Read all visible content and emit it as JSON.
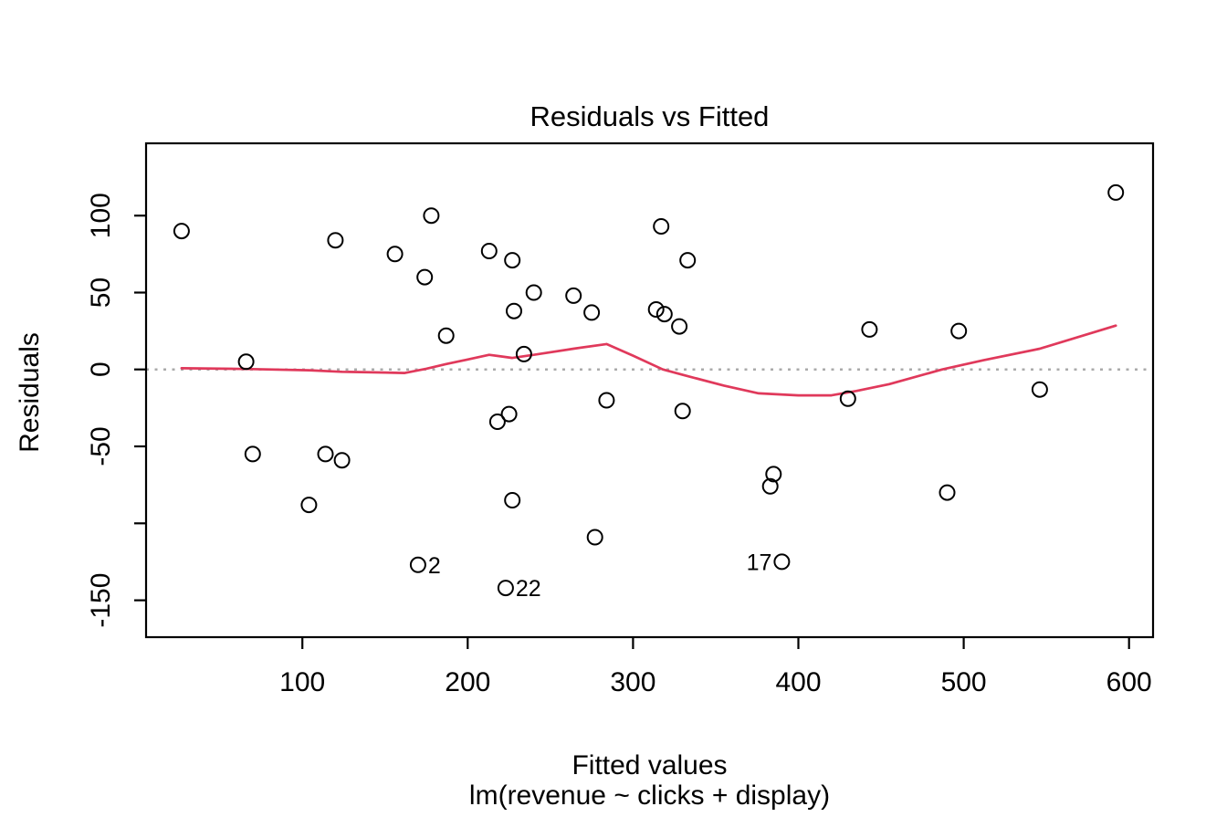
{
  "chart_data": {
    "type": "scatter",
    "title": "Residuals vs Fitted",
    "xlabel": "Fitted values",
    "sublabel": "lm(revenue ~ clicks + display)",
    "ylabel": "Residuals",
    "xlim": [
      5.5,
      614.5
    ],
    "ylim": [
      -174,
      147
    ],
    "grid": false,
    "legend": null,
    "x_ticks": [
      {
        "value": 100,
        "label": "100"
      },
      {
        "value": 200,
        "label": "200"
      },
      {
        "value": 300,
        "label": "300"
      },
      {
        "value": 400,
        "label": "400"
      },
      {
        "value": 500,
        "label": "500"
      },
      {
        "value": 600,
        "label": "600"
      }
    ],
    "y_ticks": [
      {
        "value": 100,
        "label": "100"
      },
      {
        "value": 50,
        "label": "50"
      },
      {
        "value": 0,
        "label": "0"
      },
      {
        "value": -50,
        "label": "-50"
      },
      {
        "value": -100,
        "label": ""
      },
      {
        "value": -150,
        "label": "-150"
      }
    ],
    "zero_line_y": 0,
    "points": [
      {
        "x": 27,
        "y": 90
      },
      {
        "x": 66,
        "y": 5
      },
      {
        "x": 70,
        "y": -55
      },
      {
        "x": 104,
        "y": -88
      },
      {
        "x": 114,
        "y": -55
      },
      {
        "x": 120,
        "y": 84
      },
      {
        "x": 124,
        "y": -59
      },
      {
        "x": 156,
        "y": 75
      },
      {
        "x": 170,
        "y": -127,
        "label": "2",
        "label_side": "right"
      },
      {
        "x": 174,
        "y": 60
      },
      {
        "x": 178,
        "y": 100
      },
      {
        "x": 187,
        "y": 22
      },
      {
        "x": 213,
        "y": 77
      },
      {
        "x": 218,
        "y": -34
      },
      {
        "x": 223,
        "y": -142,
        "label": "22",
        "label_side": "right"
      },
      {
        "x": 225,
        "y": -29
      },
      {
        "x": 227,
        "y": 71
      },
      {
        "x": 227,
        "y": -85
      },
      {
        "x": 228,
        "y": 38
      },
      {
        "x": 234,
        "y": 10
      },
      {
        "x": 240,
        "y": 50
      },
      {
        "x": 264,
        "y": 48
      },
      {
        "x": 275,
        "y": 37
      },
      {
        "x": 277,
        "y": -109
      },
      {
        "x": 284,
        "y": -20
      },
      {
        "x": 314,
        "y": 39
      },
      {
        "x": 317,
        "y": 93
      },
      {
        "x": 319,
        "y": 36
      },
      {
        "x": 328,
        "y": 28
      },
      {
        "x": 330,
        "y": -27
      },
      {
        "x": 333,
        "y": 71
      },
      {
        "x": 383,
        "y": -76
      },
      {
        "x": 385,
        "y": -68
      },
      {
        "x": 390,
        "y": -125,
        "label": "17",
        "label_side": "left"
      },
      {
        "x": 430,
        "y": -19
      },
      {
        "x": 443,
        "y": 26
      },
      {
        "x": 490,
        "y": -80
      },
      {
        "x": 497,
        "y": 25
      },
      {
        "x": 546,
        "y": -13
      },
      {
        "x": 592,
        "y": 115
      }
    ],
    "smooth_line": [
      [
        27,
        0.8
      ],
      [
        66,
        0.3
      ],
      [
        104,
        -0.5
      ],
      [
        124,
        -1.5
      ],
      [
        150,
        -2
      ],
      [
        162,
        -2.3
      ],
      [
        175,
        0.5
      ],
      [
        187,
        3.5
      ],
      [
        200,
        6.5
      ],
      [
        213,
        9.5
      ],
      [
        220,
        8.5
      ],
      [
        227,
        7.5
      ],
      [
        240,
        9.5
      ],
      [
        264,
        13.5
      ],
      [
        284,
        16.5
      ],
      [
        300,
        9
      ],
      [
        318,
        0
      ],
      [
        330,
        -3.5
      ],
      [
        355,
        -10.5
      ],
      [
        376,
        -15.5
      ],
      [
        400,
        -16.8
      ],
      [
        420,
        -16.8
      ],
      [
        435,
        -14
      ],
      [
        455,
        -9.5
      ],
      [
        487,
        0
      ],
      [
        512,
        6
      ],
      [
        546,
        13.5
      ],
      [
        592,
        28.5
      ]
    ],
    "colors": {
      "smooth_line": "#E0395B",
      "zero_line": "#AAAAAA",
      "point_stroke": "#000000",
      "axis": "#000000"
    }
  }
}
